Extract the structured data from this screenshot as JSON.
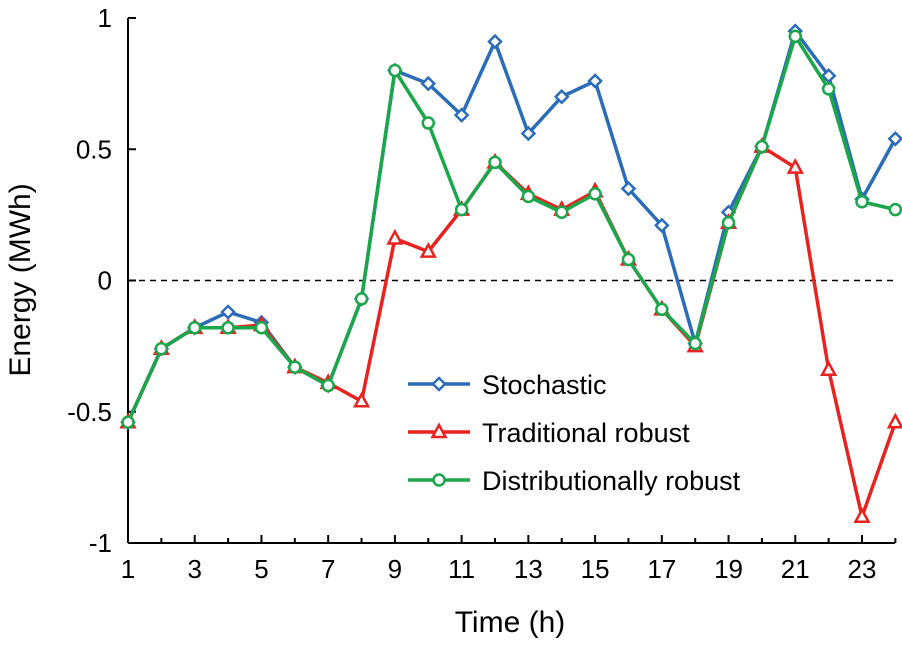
{
  "chart_data": {
    "type": "line",
    "title": "",
    "xlabel": "Time (h)",
    "ylabel": "Energy (MWh)",
    "xlim": [
      1,
      24
    ],
    "ylim": [
      -1,
      1
    ],
    "xticks": [
      1,
      3,
      5,
      7,
      9,
      11,
      13,
      15,
      17,
      19,
      21,
      23
    ],
    "yticks": [
      -1,
      -0.5,
      0,
      0.5,
      1
    ],
    "ytick_labels": [
      "-1",
      "-0.5",
      "0",
      "0.5",
      "1"
    ],
    "grid": false,
    "reference_line": {
      "y": 0,
      "style": "dashed"
    },
    "legend_placement": "center",
    "x": [
      1,
      2,
      3,
      4,
      5,
      6,
      7,
      8,
      9,
      10,
      11,
      12,
      13,
      14,
      15,
      16,
      17,
      18,
      19,
      20,
      21,
      22,
      23,
      24
    ],
    "series": [
      {
        "name": "Stochastic",
        "color": "#2b6cb8",
        "marker": "diamond",
        "values": [
          -0.54,
          -0.26,
          -0.18,
          -0.12,
          -0.16,
          -0.33,
          -0.4,
          -0.07,
          0.8,
          0.75,
          0.63,
          0.91,
          0.56,
          0.7,
          0.76,
          0.35,
          0.21,
          -0.24,
          0.26,
          0.51,
          0.95,
          0.78,
          0.31,
          0.54
        ]
      },
      {
        "name": "Traditional robust",
        "color": "#e8231f",
        "marker": "triangle",
        "values": [
          -0.54,
          -0.26,
          -0.18,
          -0.18,
          -0.17,
          -0.33,
          -0.39,
          -0.46,
          0.16,
          0.11,
          0.27,
          0.45,
          0.33,
          0.27,
          0.34,
          0.08,
          -0.11,
          -0.25,
          0.22,
          0.51,
          0.43,
          -0.34,
          -0.9,
          -0.54
        ]
      },
      {
        "name": "Distributionally robust",
        "color": "#1aa64a",
        "marker": "circle",
        "values": [
          -0.54,
          -0.26,
          -0.18,
          -0.18,
          -0.18,
          -0.33,
          -0.4,
          -0.07,
          0.8,
          0.6,
          0.27,
          0.45,
          0.32,
          0.26,
          0.33,
          0.08,
          -0.11,
          -0.24,
          0.22,
          0.51,
          0.93,
          0.73,
          0.3,
          0.27
        ]
      }
    ]
  }
}
